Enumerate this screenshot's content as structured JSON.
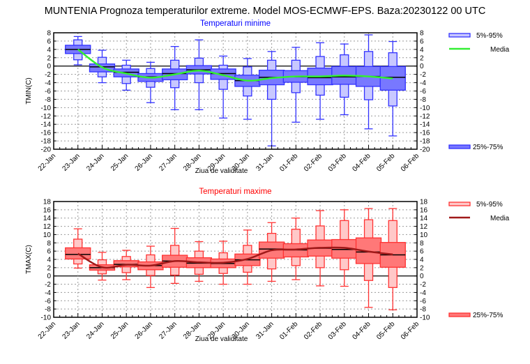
{
  "title": "MUNTENIA  Prognoza temperaturilor extreme.  Model MOS-ECMWF-EPS. Baza:20230122 00 UTC",
  "chart_data": [
    {
      "type": "box",
      "id": "tmin",
      "title": "Temperaturi minime",
      "title_color": "#0000ff",
      "xlabel": "Ziua de validitate",
      "ylabel": "TMIN(C)",
      "ylim": [
        -20,
        8
      ],
      "yticks": [
        8,
        6,
        4,
        2,
        0,
        -2,
        -4,
        -6,
        -8,
        -10,
        -12,
        -14,
        -16,
        -18,
        -20
      ],
      "grid": true,
      "x_tick_labels": [
        "22-Jan",
        "23-Jan",
        "24-Jan",
        "25-Jan",
        "26-Jan",
        "27-Jan",
        "28-Jan",
        "29-Jan",
        "30-Jan",
        "31-Jan",
        "01-Feb",
        "02-Feb",
        "03-Feb",
        "04-Feb",
        "05-Feb",
        "06-Feb"
      ],
      "colors": {
        "outer_fill": "#c8c8ff",
        "inner_fill": "#7878ff",
        "stroke": "#3232ff",
        "mean_line": "#33ee33"
      },
      "legend": {
        "placement": "right",
        "outer": "5%-95%",
        "mean": "Media",
        "inner": "25%-75%"
      },
      "categories": [
        "23-Jan",
        "24-Jan",
        "25-Jan",
        "26-Jan",
        "27-Jan",
        "28-Jan",
        "29-Jan",
        "30-Jan",
        "31-Jan",
        "01-Feb",
        "02-Feb",
        "03-Feb",
        "04-Feb",
        "05-Feb"
      ],
      "min": [
        0.3,
        -4.0,
        -5.8,
        -8.8,
        -10.5,
        -10.5,
        -12.5,
        -12.8,
        -19.2,
        -13.5,
        -12.8,
        -11.7,
        -15.1,
        -16.8
      ],
      "p5": [
        1.5,
        -2.6,
        -4.2,
        -5.1,
        -5.2,
        -4.0,
        -5.6,
        -7.2,
        -8.0,
        -6.4,
        -7.0,
        -7.5,
        -8.1,
        -9.6
      ],
      "p25": [
        3.0,
        -1.4,
        -2.6,
        -3.7,
        -3.3,
        -1.9,
        -3.2,
        -4.9,
        -4.5,
        -3.9,
        -4.5,
        -4.4,
        -4.9,
        -5.8
      ],
      "median": [
        4.0,
        -0.2,
        -1.5,
        -2.6,
        -1.8,
        -0.9,
        -1.8,
        -3.5,
        -2.7,
        -2.6,
        -2.8,
        -2.6,
        -2.5,
        -2.7
      ],
      "p75": [
        5.0,
        0.5,
        -0.7,
        -1.8,
        -0.7,
        0.1,
        -0.7,
        -2.2,
        -1.0,
        -1.1,
        -0.5,
        -0.1,
        -0.1,
        -0.1
      ],
      "p95": [
        6.3,
        2.1,
        0.2,
        -0.6,
        1.4,
        1.9,
        0.2,
        -0.2,
        1.4,
        1.4,
        2.3,
        2.7,
        3.5,
        3.2
      ],
      "max": [
        7.1,
        3.8,
        1.4,
        0.9,
        4.7,
        6.3,
        2.4,
        1.8,
        3.5,
        4.5,
        5.6,
        5.3,
        7.5,
        5.9
      ],
      "mean": [
        4.0,
        -0.3,
        -1.8,
        -2.8,
        -2.0,
        -1.1,
        -2.2,
        -3.5,
        -2.9,
        -2.5,
        -2.5,
        -2.3,
        -2.5,
        -3.0
      ]
    },
    {
      "type": "box",
      "id": "tmax",
      "title": "Temperaturi maxime",
      "title_color": "#ff0000",
      "xlabel": "Ziua de validitate",
      "ylabel": "TMAX(C)",
      "ylim": [
        -10,
        18
      ],
      "yticks": [
        18,
        16,
        14,
        12,
        10,
        8,
        6,
        4,
        2,
        0,
        -2,
        -4,
        -6,
        -8,
        -10
      ],
      "grid": true,
      "x_tick_labels": [
        "22-Jan",
        "23-Jan",
        "24-Jan",
        "25-Jan",
        "26-Jan",
        "27-Jan",
        "28-Jan",
        "29-Jan",
        "30-Jan",
        "31-Jan",
        "01-Feb",
        "02-Feb",
        "03-Feb",
        "04-Feb",
        "05-Feb",
        "06-Feb"
      ],
      "colors": {
        "outer_fill": "#ffc8c8",
        "inner_fill": "#ff7878",
        "stroke": "#ff3232",
        "mean_line": "#a01919"
      },
      "legend": {
        "placement": "right",
        "outer": "5%-95%",
        "mean": "Media",
        "inner": "25%-75%"
      },
      "categories": [
        "23-Jan",
        "24-Jan",
        "25-Jan",
        "26-Jan",
        "27-Jan",
        "28-Jan",
        "29-Jan",
        "30-Jan",
        "31-Jan",
        "01-Feb",
        "02-Feb",
        "03-Feb",
        "04-Feb",
        "05-Feb"
      ],
      "min": [
        1.9,
        -1.0,
        -0.9,
        -2.8,
        -1.8,
        -1.3,
        -2.0,
        -2.0,
        -1.3,
        -0.9,
        -2.4,
        -2.5,
        -7.6,
        -8.2
      ],
      "p5": [
        2.9,
        0.5,
        0.8,
        0.1,
        0.2,
        0.4,
        0.6,
        0.9,
        1.7,
        2.5,
        2.0,
        1.5,
        -1.1,
        -2.8
      ],
      "p25": [
        4.1,
        1.4,
        2.2,
        1.5,
        2.1,
        2.0,
        2.0,
        2.5,
        4.3,
        4.6,
        4.8,
        4.3,
        3.0,
        2.1
      ],
      "median": [
        5.2,
        2.0,
        2.8,
        2.5,
        3.6,
        3.1,
        3.0,
        3.9,
        6.5,
        6.3,
        6.7,
        6.4,
        5.8,
        5.1
      ],
      "p75": [
        6.8,
        2.7,
        3.7,
        3.4,
        5.0,
        4.4,
        4.1,
        5.3,
        8.2,
        7.8,
        8.7,
        8.8,
        9.2,
        8.1
      ],
      "p95": [
        8.9,
        3.9,
        4.7,
        5.1,
        7.4,
        6.0,
        5.6,
        7.4,
        10.3,
        11.3,
        12.1,
        13.4,
        13.6,
        13.4
      ],
      "max": [
        11.4,
        5.7,
        6.2,
        7.2,
        11.5,
        8.3,
        8.4,
        11.1,
        12.9,
        14.0,
        15.8,
        16.0,
        16.3,
        16.3
      ],
      "mean": [
        5.4,
        2.1,
        2.7,
        2.5,
        3.6,
        3.3,
        3.2,
        4.1,
        6.2,
        6.4,
        6.8,
        6.8,
        5.9,
        5.2
      ]
    }
  ]
}
